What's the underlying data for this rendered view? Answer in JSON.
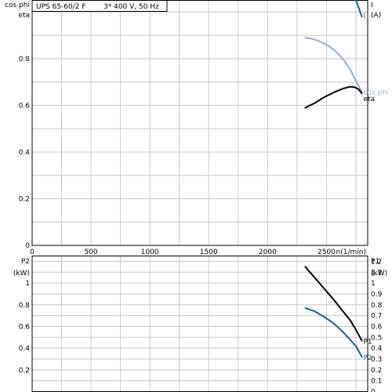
{
  "chart_data": [
    {
      "type": "line",
      "title": "UPS 65-60/2 F",
      "subtitle": "3* 400 V, 50 Hz",
      "xlabel": "n(1/min)",
      "ylabel_left_top": "cos phi",
      "ylabel_left_bottom": "eta",
      "ylabel_right_top": "I",
      "ylabel_right_bottom": "(A)",
      "xlim": [
        0,
        2850
      ],
      "ylim": [
        0,
        1.05
      ],
      "grid": true,
      "x_ticks": [
        "0",
        "500",
        "1000",
        "1500",
        "2000",
        "2500"
      ],
      "x_tick_values": [
        0,
        500,
        1000,
        1500,
        2000,
        2500
      ],
      "y_ticks": [
        "0",
        "0.2",
        "0.4",
        "0.6",
        "0.8"
      ],
      "y_tick_values": [
        0,
        0.2,
        0.4,
        0.6,
        0.8
      ],
      "right_ticks": [],
      "series": [
        {
          "name": "I",
          "color": "#1f5f8b",
          "x": [
            2750,
            2800
          ],
          "y": [
            1.1,
            0.98
          ]
        },
        {
          "name": "cos phi",
          "color": "#8fb1cf",
          "x": [
            2320,
            2380,
            2440,
            2500,
            2560,
            2610,
            2660,
            2700,
            2740,
            2770,
            2800
          ],
          "y": [
            0.89,
            0.885,
            0.875,
            0.86,
            0.84,
            0.815,
            0.785,
            0.755,
            0.715,
            0.685,
            0.66
          ]
        },
        {
          "name": "eta",
          "color": "#000000",
          "x": [
            2320,
            2400,
            2480,
            2560,
            2640,
            2700,
            2740,
            2770,
            2800
          ],
          "y": [
            0.59,
            0.61,
            0.635,
            0.655,
            0.672,
            0.68,
            0.678,
            0.67,
            0.652
          ]
        }
      ]
    },
    {
      "type": "line",
      "ylabel_left_top": "P2",
      "ylabel_left_bottom": "(kW)",
      "ylabel_right_top": "P1",
      "ylabel_right_bottom": "(kW)",
      "xlim": [
        0,
        2850
      ],
      "ylim": [
        0,
        1.25
      ],
      "grid": true,
      "y_ticks": [
        "0.2",
        "0.4",
        "0.6",
        "0.8",
        "1"
      ],
      "y_tick_values": [
        0.2,
        0.4,
        0.6,
        0.8,
        1
      ],
      "right_ticks": [
        "0",
        "0.1",
        "0.2",
        "0.3",
        "0.4",
        "0.5",
        "0.6",
        "0.7",
        "0.8",
        "0.9",
        "1",
        "1.1",
        "1.2"
      ],
      "right_tick_values": [
        0,
        0.1,
        0.2,
        0.3,
        0.4,
        0.5,
        0.6,
        0.7,
        0.8,
        0.9,
        1.0,
        1.1,
        1.2
      ],
      "series": [
        {
          "name": "P1",
          "color": "#000000",
          "x": [
            2320,
            2400,
            2480,
            2560,
            2640,
            2700,
            2750,
            2800
          ],
          "y": [
            1.15,
            1.05,
            0.95,
            0.85,
            0.74,
            0.66,
            0.57,
            0.47
          ]
        },
        {
          "name": "P2",
          "color": "#1f5f8b",
          "x": [
            2320,
            2400,
            2480,
            2560,
            2640,
            2700,
            2750,
            2800
          ],
          "y": [
            0.77,
            0.74,
            0.69,
            0.63,
            0.55,
            0.48,
            0.42,
            0.32
          ]
        }
      ]
    }
  ]
}
